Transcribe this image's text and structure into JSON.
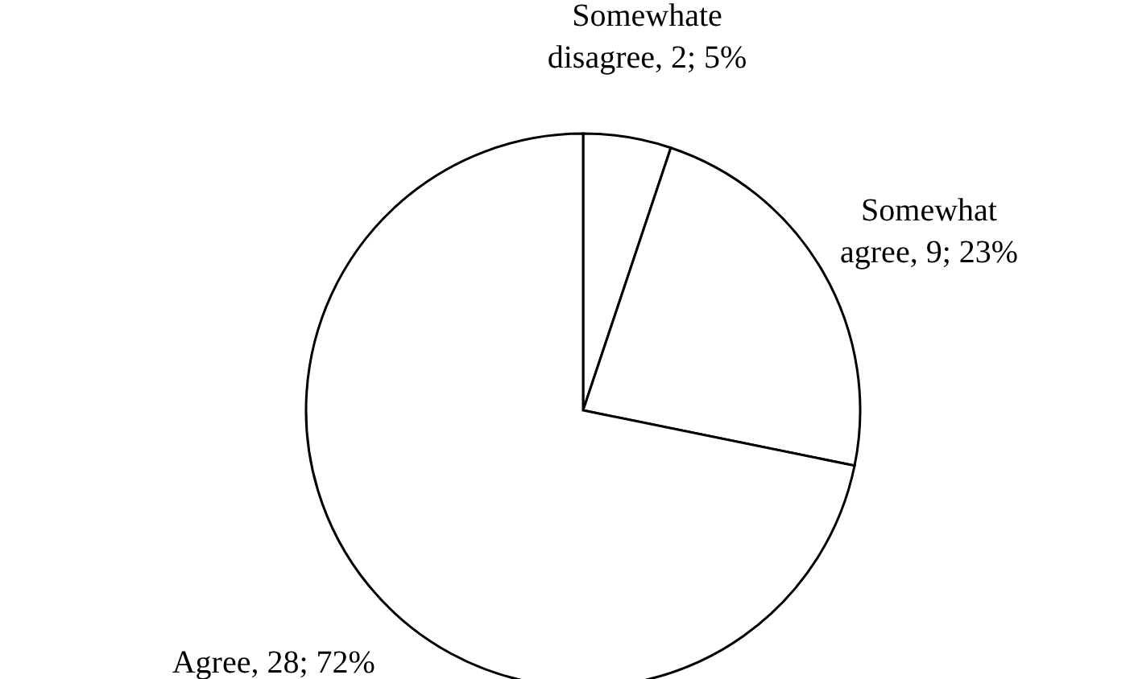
{
  "chart_data": {
    "type": "pie",
    "categories": [
      "Somewhate disagree",
      "Somewhat agree",
      "Agree"
    ],
    "values": [
      2,
      9,
      28
    ],
    "value_labels": [
      "2; 5%",
      "9; 23%",
      "28; 72%"
    ],
    "colors": [
      "#ffffff",
      "#ffffff",
      "#ffffff"
    ]
  }
}
